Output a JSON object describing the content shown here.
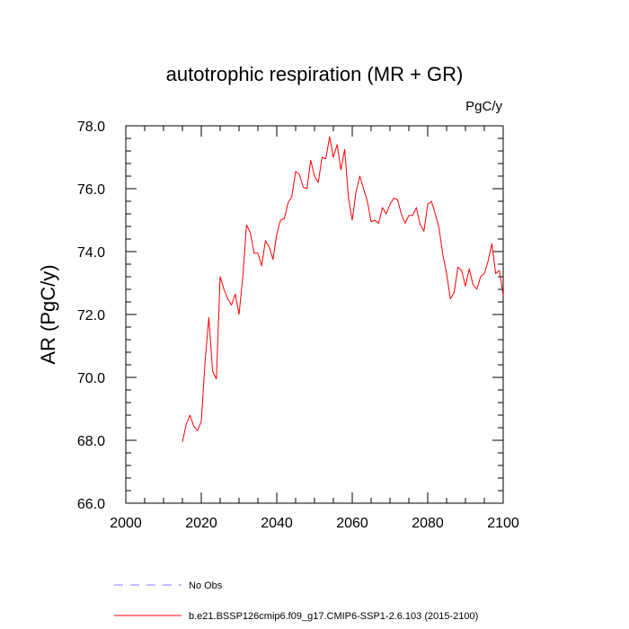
{
  "chart_data": {
    "type": "line",
    "title": "autotrophic respiration (MR + GR)",
    "units": "PgC/y",
    "ylabel": "AR  (PgC/y)",
    "xlabel": "",
    "xlim": [
      2000,
      2100
    ],
    "ylim": [
      66.0,
      78.0
    ],
    "x_major_ticks": [
      2000,
      2020,
      2040,
      2060,
      2080,
      2100
    ],
    "x_tick_labels": [
      "2000",
      "2020",
      "2040",
      "2060",
      "2080",
      "2100"
    ],
    "x_minor_step": 5,
    "y_major_ticks": [
      66.0,
      68.0,
      70.0,
      72.0,
      74.0,
      76.0,
      78.0
    ],
    "y_tick_labels": [
      "66.0",
      "68.0",
      "70.0",
      "72.0",
      "74.0",
      "76.0",
      "78.0"
    ],
    "y_minor_step": 0.4,
    "legend": [
      {
        "name": "No Obs",
        "color": "#8080ff",
        "style": "dashed"
      },
      {
        "name": "b.e21.BSSP126cmip6.f09_g17.CMIP6-SSP1-2.6.103 (2015-2100)",
        "color": "#ff0000",
        "style": "solid"
      }
    ],
    "series": [
      {
        "name": "b.e21.BSSP126cmip6.f09_g17.CMIP6-SSP1-2.6.103 (2015-2100)",
        "color": "#ff0000",
        "x": [
          2015,
          2016,
          2017,
          2018,
          2019,
          2020,
          2021,
          2022,
          2023,
          2024,
          2025,
          2026,
          2027,
          2028,
          2029,
          2030,
          2031,
          2032,
          2033,
          2034,
          2035,
          2036,
          2037,
          2038,
          2039,
          2040,
          2041,
          2042,
          2043,
          2044,
          2045,
          2046,
          2047,
          2048,
          2049,
          2050,
          2051,
          2052,
          2053,
          2054,
          2055,
          2056,
          2057,
          2058,
          2059,
          2060,
          2061,
          2062,
          2063,
          2064,
          2065,
          2066,
          2067,
          2068,
          2069,
          2070,
          2071,
          2072,
          2073,
          2074,
          2075,
          2076,
          2077,
          2078,
          2079,
          2080,
          2081,
          2082,
          2083,
          2084,
          2085,
          2086,
          2087,
          2088,
          2089,
          2090,
          2091,
          2092,
          2093,
          2094,
          2095,
          2096,
          2097,
          2098,
          2099,
          2100
        ],
        "values": [
          67.95,
          68.5,
          68.8,
          68.45,
          68.3,
          68.6,
          70.5,
          71.9,
          70.2,
          69.95,
          73.2,
          72.8,
          72.5,
          72.3,
          72.65,
          72.0,
          73.2,
          74.85,
          74.6,
          73.95,
          73.95,
          73.55,
          74.35,
          74.15,
          73.75,
          74.55,
          75.0,
          75.05,
          75.55,
          75.75,
          76.55,
          76.45,
          76.05,
          76.0,
          76.9,
          76.4,
          76.2,
          77.0,
          76.95,
          77.65,
          77.0,
          77.4,
          76.6,
          77.25,
          75.7,
          75.0,
          75.9,
          76.4,
          76.0,
          75.6,
          74.95,
          75.0,
          74.9,
          75.4,
          75.2,
          75.5,
          75.7,
          75.65,
          75.2,
          74.9,
          75.15,
          75.15,
          75.4,
          74.85,
          74.65,
          75.5,
          75.6,
          75.2,
          74.75,
          73.9,
          73.3,
          72.5,
          72.7,
          73.5,
          73.4,
          72.9,
          73.45,
          72.95,
          72.8,
          73.2,
          73.3,
          73.7,
          74.25,
          73.3,
          73.4,
          72.6
        ]
      }
    ]
  }
}
